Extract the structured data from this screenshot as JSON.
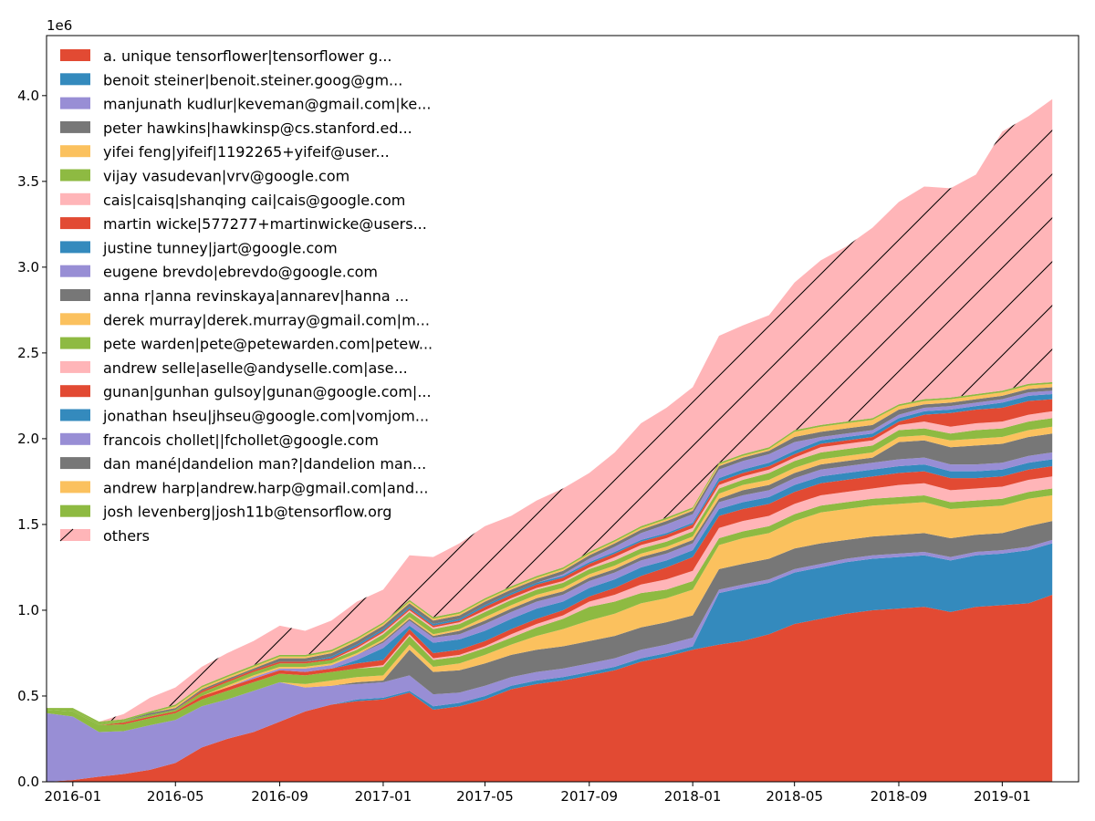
{
  "chart_data": {
    "type": "area",
    "title": "",
    "xlabel": "",
    "ylabel": "",
    "y_offset_text": "1e6",
    "ylim": [
      0,
      4.35
    ],
    "xlim": [
      "2015-12-01",
      "2019-04-01"
    ],
    "y_ticks": [
      {
        "value": 0.0,
        "label": "0.0"
      },
      {
        "value": 0.5,
        "label": "0.5"
      },
      {
        "value": 1.0,
        "label": "1.0"
      },
      {
        "value": 1.5,
        "label": "1.5"
      },
      {
        "value": 2.0,
        "label": "2.0"
      },
      {
        "value": 2.5,
        "label": "2.5"
      },
      {
        "value": 3.0,
        "label": "3.0"
      },
      {
        "value": 3.5,
        "label": "3.5"
      },
      {
        "value": 4.0,
        "label": "4.0"
      }
    ],
    "x_ticks": [
      "2016-01",
      "2016-05",
      "2016-09",
      "2017-01",
      "2017-05",
      "2017-09",
      "2018-01",
      "2018-05",
      "2018-09",
      "2019-01"
    ],
    "legend_position": "upper left",
    "grid": false,
    "x": [
      "2015-12",
      "2016-01",
      "2016-02",
      "2016-03",
      "2016-04",
      "2016-05",
      "2016-06",
      "2016-07",
      "2016-08",
      "2016-09",
      "2016-10",
      "2016-11",
      "2016-12",
      "2017-01",
      "2017-02",
      "2017-03",
      "2017-04",
      "2017-05",
      "2017-06",
      "2017-07",
      "2017-08",
      "2017-09",
      "2017-10",
      "2017-11",
      "2017-12",
      "2018-01",
      "2018-02",
      "2018-03",
      "2018-04",
      "2018-05",
      "2018-06",
      "2018-07",
      "2018-08",
      "2018-09",
      "2018-10",
      "2018-11",
      "2018-12",
      "2019-01",
      "2019-02",
      "2019-03"
    ],
    "series": [
      {
        "name": "a. unique tensorflower|tensorflower g...",
        "color": "#E24A33",
        "values": [
          0,
          0.01,
          0.03,
          0.045,
          0.07,
          0.11,
          0.2,
          0.25,
          0.29,
          0.35,
          0.41,
          0.45,
          0.47,
          0.48,
          0.52,
          0.42,
          0.44,
          0.48,
          0.54,
          0.57,
          0.59,
          0.62,
          0.65,
          0.7,
          0.73,
          0.77,
          0.8,
          0.82,
          0.86,
          0.92,
          0.95,
          0.98,
          1.0,
          1.01,
          1.02,
          0.99,
          1.02,
          1.03,
          1.04,
          1.09
        ]
      },
      {
        "name": "benoit steiner|benoit.steiner.goog@gm...",
        "color": "#348ABD",
        "values": [
          0,
          0,
          0,
          0,
          0,
          0,
          0,
          0,
          0,
          0,
          0,
          0,
          0.01,
          0.01,
          0.01,
          0.02,
          0.02,
          0.02,
          0.02,
          0.02,
          0.02,
          0.02,
          0.02,
          0.02,
          0.02,
          0.02,
          0.3,
          0.31,
          0.3,
          0.3,
          0.3,
          0.3,
          0.3,
          0.3,
          0.3,
          0.3,
          0.3,
          0.3,
          0.31,
          0.3
        ]
      },
      {
        "name": "manjunath kudlur|keveman@gmail.com|ke...",
        "color": "#988ED5",
        "values": [
          0.4,
          0.37,
          0.26,
          0.25,
          0.26,
          0.25,
          0.24,
          0.23,
          0.24,
          0.23,
          0.14,
          0.11,
          0.09,
          0.09,
          0.09,
          0.07,
          0.06,
          0.06,
          0.05,
          0.05,
          0.05,
          0.05,
          0.05,
          0.05,
          0.05,
          0.05,
          0.02,
          0.02,
          0.02,
          0.02,
          0.02,
          0.02,
          0.02,
          0.02,
          0.02,
          0.02,
          0.02,
          0.02,
          0.02,
          0.02
        ]
      },
      {
        "name": "peter hawkins|hawkinsp@cs.stanford.ed...",
        "color": "#777777",
        "values": [
          0,
          0,
          0,
          0,
          0,
          0,
          0,
          0,
          0,
          0,
          0,
          0,
          0.01,
          0.01,
          0.15,
          0.13,
          0.13,
          0.13,
          0.13,
          0.13,
          0.13,
          0.13,
          0.13,
          0.13,
          0.13,
          0.13,
          0.12,
          0.12,
          0.12,
          0.12,
          0.12,
          0.11,
          0.11,
          0.11,
          0.11,
          0.11,
          0.1,
          0.1,
          0.12,
          0.11
        ]
      },
      {
        "name": "yifei feng|yifeif|1192265+yifeif@user...",
        "color": "#FBC15E",
        "values": [
          0,
          0,
          0,
          0,
          0,
          0,
          0,
          0,
          0,
          0,
          0.02,
          0.03,
          0.03,
          0.03,
          0.03,
          0.03,
          0.04,
          0.05,
          0.06,
          0.08,
          0.1,
          0.12,
          0.13,
          0.14,
          0.14,
          0.15,
          0.14,
          0.15,
          0.15,
          0.16,
          0.18,
          0.18,
          0.18,
          0.18,
          0.18,
          0.17,
          0.16,
          0.16,
          0.16,
          0.15
        ]
      },
      {
        "name": "vijay vasudevan|vrv@google.com",
        "color": "#8EBA42",
        "values": [
          0.02,
          0.03,
          0.04,
          0.04,
          0.04,
          0.04,
          0.04,
          0.05,
          0.05,
          0.05,
          0.05,
          0.05,
          0.05,
          0.05,
          0.05,
          0.04,
          0.04,
          0.04,
          0.04,
          0.05,
          0.06,
          0.08,
          0.07,
          0.06,
          0.05,
          0.05,
          0.04,
          0.04,
          0.04,
          0.04,
          0.04,
          0.04,
          0.04,
          0.04,
          0.04,
          0.04,
          0.04,
          0.04,
          0.04,
          0.04
        ]
      },
      {
        "name": "cais|caisq|shanqing cai|cais@google.com",
        "color": "#FFB5B8",
        "values": [
          0,
          0,
          0,
          0,
          0,
          0,
          0,
          0,
          0,
          0,
          0,
          0,
          0,
          0.01,
          0.01,
          0.01,
          0.01,
          0.01,
          0.02,
          0.02,
          0.02,
          0.03,
          0.04,
          0.05,
          0.06,
          0.06,
          0.06,
          0.06,
          0.06,
          0.06,
          0.06,
          0.06,
          0.06,
          0.07,
          0.07,
          0.07,
          0.07,
          0.07,
          0.07,
          0.07
        ]
      },
      {
        "name": "martin wicke|577277+martinwicke@users...",
        "color": "#E24A33",
        "values": [
          0,
          0,
          0,
          0.01,
          0.01,
          0.01,
          0.02,
          0.02,
          0.02,
          0.02,
          0.02,
          0.02,
          0.03,
          0.03,
          0.03,
          0.03,
          0.03,
          0.03,
          0.03,
          0.03,
          0.03,
          0.03,
          0.04,
          0.05,
          0.07,
          0.08,
          0.07,
          0.07,
          0.07,
          0.07,
          0.07,
          0.07,
          0.07,
          0.07,
          0.07,
          0.07,
          0.06,
          0.06,
          0.06,
          0.06
        ]
      },
      {
        "name": "justine tunney|jart@google.com",
        "color": "#348ABD",
        "values": [
          0,
          0,
          0,
          0,
          0,
          0,
          0,
          0,
          0,
          0,
          0,
          0,
          0.02,
          0.07,
          0.02,
          0.06,
          0.06,
          0.06,
          0.06,
          0.06,
          0.05,
          0.05,
          0.05,
          0.05,
          0.04,
          0.04,
          0.04,
          0.04,
          0.04,
          0.04,
          0.04,
          0.04,
          0.04,
          0.04,
          0.04,
          0.04,
          0.04,
          0.04,
          0.04,
          0.04
        ]
      },
      {
        "name": "eugene brevdo|ebrevdo@google.com",
        "color": "#988ED5",
        "values": [
          0,
          0,
          0,
          0,
          0,
          0,
          0,
          0,
          0.01,
          0.01,
          0.02,
          0.02,
          0.03,
          0.03,
          0.03,
          0.03,
          0.03,
          0.04,
          0.04,
          0.04,
          0.04,
          0.04,
          0.04,
          0.04,
          0.04,
          0.04,
          0.04,
          0.04,
          0.04,
          0.04,
          0.04,
          0.04,
          0.04,
          0.04,
          0.04,
          0.04,
          0.04,
          0.04,
          0.04,
          0.04
        ]
      },
      {
        "name": "anna r|anna revinskaya|annarev|hanna ...",
        "color": "#777777",
        "values": [
          0,
          0,
          0,
          0,
          0,
          0,
          0,
          0,
          0,
          0,
          0,
          0,
          0,
          0.01,
          0.01,
          0.01,
          0.02,
          0.02,
          0.02,
          0.02,
          0.02,
          0.02,
          0.02,
          0.02,
          0.02,
          0.02,
          0.02,
          0.03,
          0.03,
          0.03,
          0.03,
          0.03,
          0.03,
          0.1,
          0.1,
          0.1,
          0.11,
          0.11,
          0.11,
          0.11
        ]
      },
      {
        "name": "derek murray|derek.murray@gmail.com|m...",
        "color": "#FBC15E",
        "values": [
          0,
          0,
          0,
          0,
          0,
          0,
          0,
          0.01,
          0.01,
          0.01,
          0.01,
          0.01,
          0.01,
          0.01,
          0.01,
          0.01,
          0.01,
          0.02,
          0.02,
          0.02,
          0.02,
          0.02,
          0.02,
          0.02,
          0.02,
          0.02,
          0.03,
          0.03,
          0.03,
          0.03,
          0.03,
          0.03,
          0.03,
          0.03,
          0.03,
          0.04,
          0.04,
          0.04,
          0.04,
          0.04
        ]
      },
      {
        "name": "pete warden|pete@petewarden.com|petew...",
        "color": "#8EBA42",
        "values": [
          0,
          0.01,
          0.01,
          0.01,
          0.01,
          0.01,
          0.02,
          0.02,
          0.02,
          0.02,
          0.02,
          0.02,
          0.02,
          0.03,
          0.03,
          0.03,
          0.03,
          0.03,
          0.03,
          0.03,
          0.03,
          0.03,
          0.03,
          0.03,
          0.03,
          0.03,
          0.03,
          0.03,
          0.04,
          0.04,
          0.04,
          0.04,
          0.04,
          0.04,
          0.04,
          0.04,
          0.05,
          0.05,
          0.05,
          0.05
        ]
      },
      {
        "name": "andrew selle|aselle@andyselle.com|ase...",
        "color": "#FFB5B8",
        "values": [
          0,
          0,
          0,
          0,
          0,
          0,
          0,
          0,
          0,
          0,
          0,
          0,
          0.01,
          0.01,
          0.01,
          0.01,
          0.01,
          0.01,
          0.01,
          0.01,
          0.01,
          0.01,
          0.02,
          0.02,
          0.02,
          0.02,
          0.02,
          0.02,
          0.02,
          0.02,
          0.03,
          0.03,
          0.03,
          0.03,
          0.04,
          0.04,
          0.04,
          0.04,
          0.04,
          0.04
        ]
      },
      {
        "name": "gunan|gunhan gulsoy|gunan@google.com|...",
        "color": "#E24A33",
        "values": [
          0,
          0,
          0,
          0,
          0,
          0,
          0.01,
          0.01,
          0.01,
          0.01,
          0.01,
          0.01,
          0.01,
          0.01,
          0.01,
          0.01,
          0.01,
          0.02,
          0.02,
          0.02,
          0.02,
          0.02,
          0.02,
          0.02,
          0.02,
          0.02,
          0.02,
          0.02,
          0.02,
          0.02,
          0.02,
          0.02,
          0.02,
          0.02,
          0.04,
          0.08,
          0.08,
          0.08,
          0.08,
          0.07
        ]
      },
      {
        "name": "jonathan hseu|jhseu@google.com|vomjom...",
        "color": "#348ABD",
        "values": [
          0,
          0,
          0,
          0,
          0,
          0,
          0,
          0,
          0,
          0,
          0,
          0.01,
          0.01,
          0.01,
          0.01,
          0.01,
          0.01,
          0.01,
          0.01,
          0.01,
          0.01,
          0.01,
          0.01,
          0.01,
          0.01,
          0.01,
          0.02,
          0.02,
          0.02,
          0.02,
          0.02,
          0.02,
          0.02,
          0.02,
          0.02,
          0.02,
          0.02,
          0.03,
          0.03,
          0.03
        ]
      },
      {
        "name": "francois chollet||fchollet@google.com",
        "color": "#988ED5",
        "values": [
          0,
          0,
          0,
          0,
          0,
          0,
          0,
          0,
          0,
          0,
          0,
          0,
          0,
          0,
          0,
          0,
          0,
          0,
          0,
          0,
          0.01,
          0.02,
          0.03,
          0.04,
          0.05,
          0.05,
          0.05,
          0.05,
          0.05,
          0.05,
          0.02,
          0.02,
          0.02,
          0.02,
          0.02,
          0.02,
          0.02,
          0.02,
          0.02,
          0.02
        ]
      },
      {
        "name": "dan mané|dandelion man?|dandelion man...",
        "color": "#777777",
        "values": [
          0,
          0,
          0,
          0,
          0.01,
          0.01,
          0.01,
          0.01,
          0.01,
          0.02,
          0.02,
          0.02,
          0.02,
          0.02,
          0.02,
          0.02,
          0.02,
          0.02,
          0.02,
          0.02,
          0.02,
          0.02,
          0.02,
          0.02,
          0.02,
          0.02,
          0.02,
          0.02,
          0.02,
          0.03,
          0.03,
          0.03,
          0.03,
          0.03,
          0.02,
          0.02,
          0.02,
          0.02,
          0.02,
          0.02
        ]
      },
      {
        "name": "andrew harp|andrew.harp@gmail.com|and...",
        "color": "#FBC15E",
        "values": [
          0,
          0,
          0,
          0,
          0,
          0.01,
          0.01,
          0.01,
          0.01,
          0.01,
          0.01,
          0.01,
          0.01,
          0.01,
          0.01,
          0.01,
          0.01,
          0.01,
          0.01,
          0.01,
          0.01,
          0.01,
          0.01,
          0.01,
          0.01,
          0.01,
          0.01,
          0.01,
          0.01,
          0.03,
          0.03,
          0.03,
          0.03,
          0.02,
          0.02,
          0.02,
          0.02,
          0.02,
          0.02,
          0.02
        ]
      },
      {
        "name": "josh levenberg|josh11b@tensorflow.org",
        "color": "#8EBA42",
        "values": [
          0.01,
          0.01,
          0.01,
          0.01,
          0.01,
          0.01,
          0.01,
          0.01,
          0.01,
          0.01,
          0.01,
          0.01,
          0.01,
          0.01,
          0.01,
          0.01,
          0.01,
          0.01,
          0.01,
          0.01,
          0.01,
          0.01,
          0.01,
          0.01,
          0.01,
          0.01,
          0.01,
          0.01,
          0.01,
          0.01,
          0.01,
          0.01,
          0.01,
          0.01,
          0.01,
          0.01,
          0.01,
          0.01,
          0.01,
          0.01
        ]
      },
      {
        "name": "others",
        "color": "#FFB5B8",
        "hatch": true,
        "values": [
          0,
          0,
          0,
          0.03,
          0.08,
          0.1,
          0.11,
          0.13,
          0.14,
          0.17,
          0.14,
          0.17,
          0.21,
          0.19,
          0.26,
          0.35,
          0.4,
          0.42,
          0.41,
          0.44,
          0.46,
          0.46,
          0.51,
          0.6,
          0.64,
          0.7,
          0.74,
          0.75,
          0.77,
          0.86,
          0.96,
          1.02,
          1.11,
          1.18,
          1.24,
          1.22,
          1.28,
          1.51,
          1.56,
          1.65
        ]
      }
    ]
  }
}
